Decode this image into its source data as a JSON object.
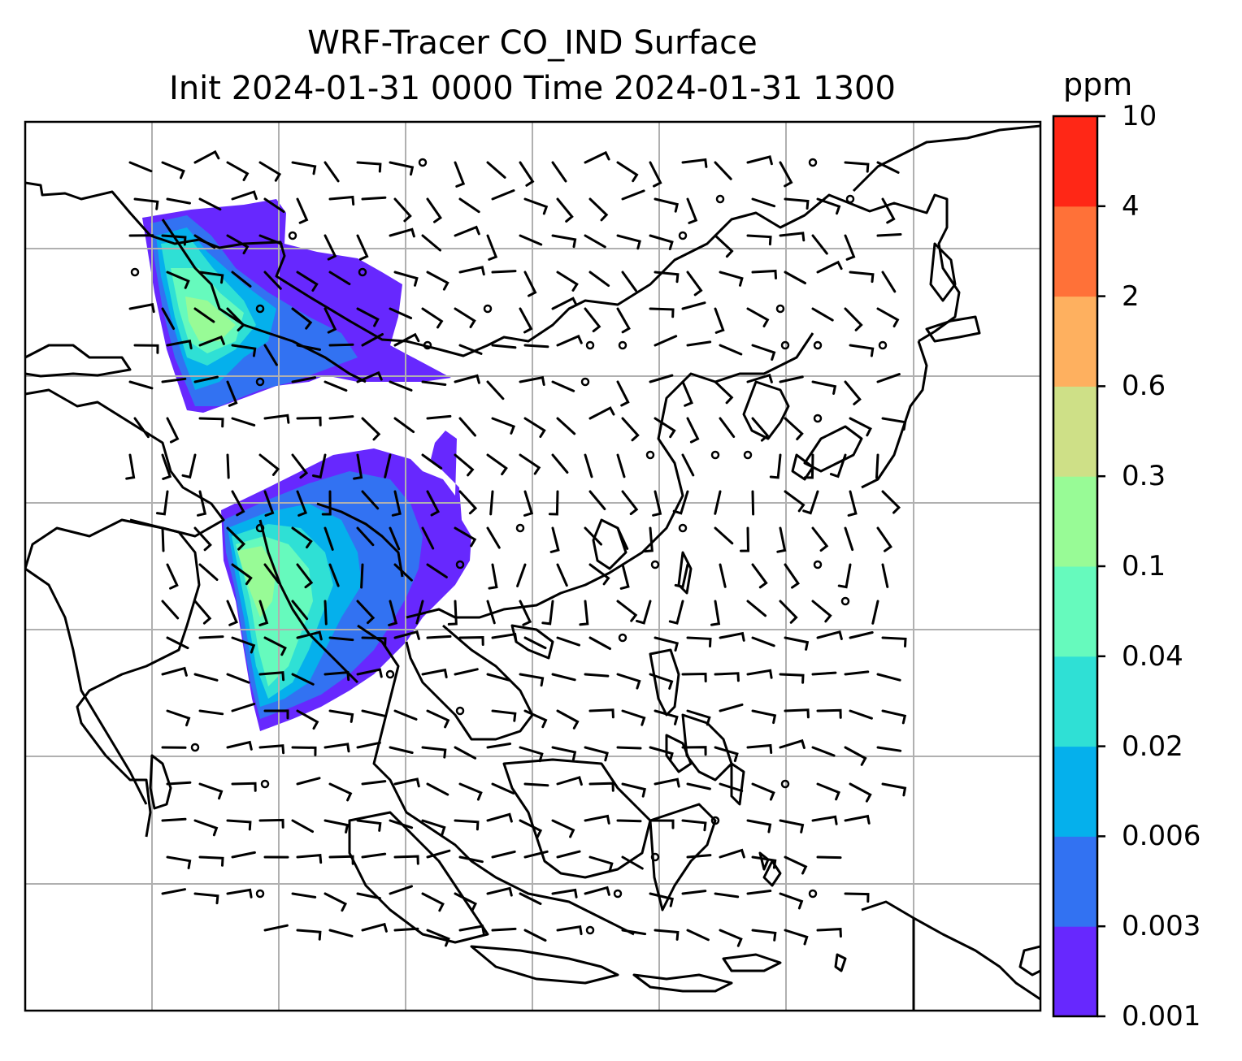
{
  "title": {
    "line1": "WRF-Tracer CO_IND Surface",
    "line2": "Init 2024-01-31 0000 Time 2024-01-31 1300"
  },
  "colorbar": {
    "unit": "ppm",
    "ticks": [
      "0.001",
      "0.003",
      "0.006",
      "0.02",
      "0.04",
      "0.1",
      "0.3",
      "0.6",
      "2",
      "4",
      "10"
    ],
    "colors": [
      "#6728fe",
      "#3272f2",
      "#05b0ec",
      "#2fe0d5",
      "#66fabd",
      "#98fb96",
      "#cee087",
      "#feb05f",
      "#ff7138",
      "#ff2716"
    ]
  },
  "map": {
    "frame_color": "#000000",
    "gridline_color": "#b0b0b0",
    "coastline_color": "#000000",
    "wind_barb_color": "#000000",
    "gridlines": true
  }
}
